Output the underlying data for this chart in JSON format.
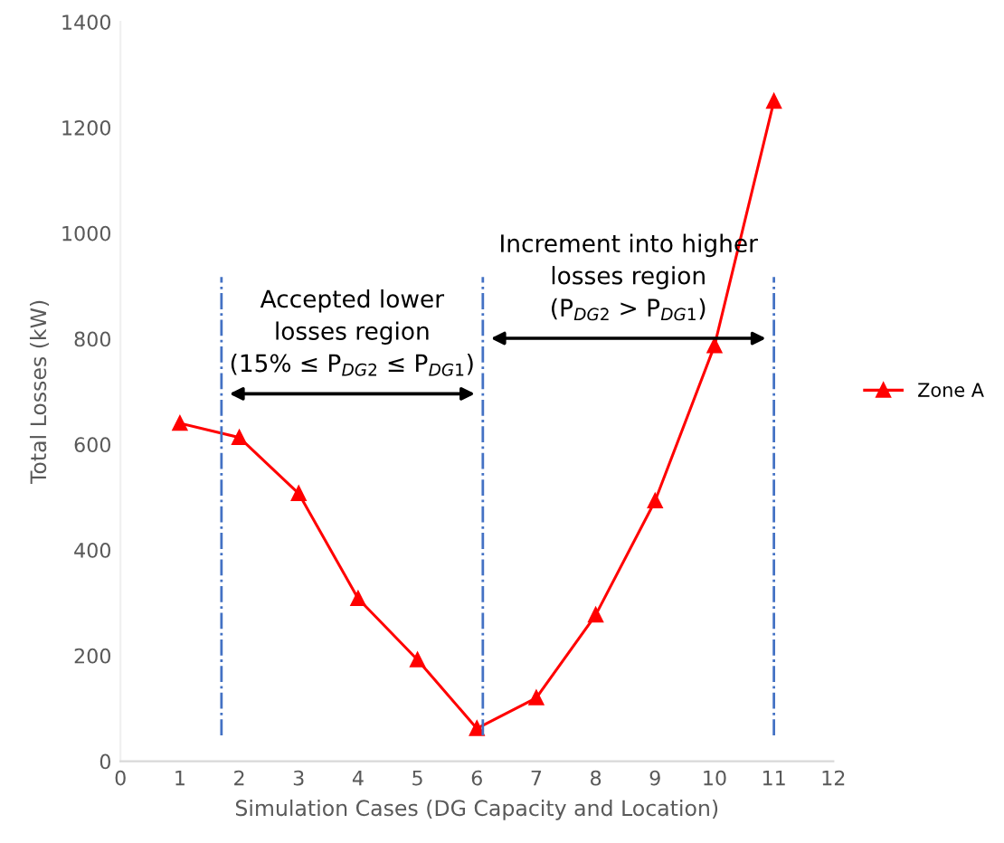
{
  "chart_data": {
    "type": "line",
    "xlabel": "Simulation Cases (DG Capacity and Location)",
    "ylabel": "Total Losses (kW)",
    "x": [
      1,
      2,
      3,
      4,
      5,
      6,
      7,
      8,
      9,
      10,
      11
    ],
    "series": [
      {
        "name": "Zone A",
        "color": "#ff0000",
        "values": [
          640,
          613,
          507,
          308,
          192,
          62,
          120,
          277,
          493,
          787,
          1250
        ]
      }
    ],
    "xlim": [
      0,
      12
    ],
    "xticks": [
      0,
      1,
      2,
      3,
      4,
      5,
      6,
      7,
      8,
      9,
      10,
      11,
      12
    ],
    "ylim": [
      0,
      1400
    ],
    "yticks": [
      0,
      200,
      400,
      600,
      800,
      1000,
      1200,
      1400
    ],
    "ref_lines": [
      {
        "axis": "x",
        "value": 1.7,
        "color": "#4472c4",
        "line_style": "dashdot"
      },
      {
        "axis": "x",
        "value": 6.1,
        "color": "#4472c4",
        "line_style": "dashdot"
      },
      {
        "axis": "x",
        "value": 11,
        "color": "#4472c4",
        "line_style": "dashdot"
      }
    ],
    "annotations": [
      "Accepted lower\nlosses region\n(15% ≤ P$_{DG2}$ ≤ P$_{DG1}$)",
      "Increment into higher\nlosses region\n(P$_{DG2}$ > P$_{DG1}$)"
    ],
    "marker": "triangle",
    "line_style": "solid",
    "grid": false,
    "legend": "right"
  }
}
